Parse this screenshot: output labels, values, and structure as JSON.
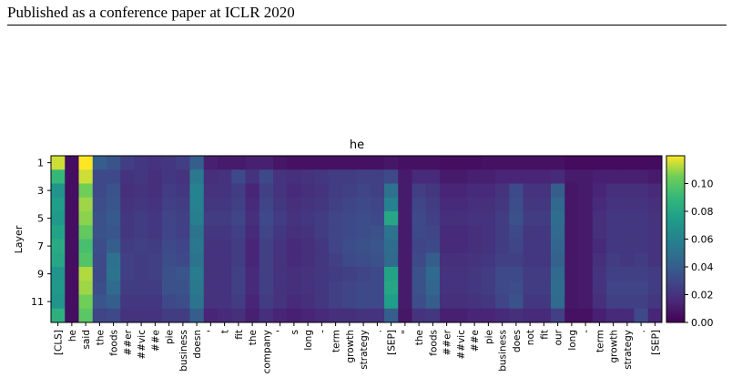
{
  "page": {
    "header": "Published as a conference paper at ICLR 2020"
  },
  "chart_data": {
    "type": "heatmap",
    "title": "he",
    "ylabel": "Layer",
    "xlabel": "",
    "y_tick_labels": [
      "1",
      "3",
      "5",
      "7",
      "9",
      "11"
    ],
    "rows": [
      1,
      2,
      3,
      4,
      5,
      6,
      7,
      8,
      9,
      10,
      11,
      12
    ],
    "x_tokens": [
      "[CLS]",
      "he",
      "said",
      "the",
      "foods",
      "##er",
      "##vic",
      "##e",
      "pie",
      "business",
      "doesn",
      "'",
      "t",
      "fit",
      "the",
      "company",
      "'",
      "s",
      "long",
      "-",
      "term",
      "growth",
      "strategy",
      ".",
      "[SEP]",
      "\"",
      "the",
      "foods",
      "##er",
      "##vic",
      "##e",
      "pie",
      "business",
      "does",
      "not",
      "fit",
      "our",
      "long",
      "-",
      "term",
      "growth",
      "strategy",
      ".",
      "[SEP]"
    ],
    "colorbar": {
      "min": 0.0,
      "max": 0.12,
      "ticks": [
        0.0,
        0.02,
        0.04,
        0.06,
        0.08,
        0.1
      ],
      "tick_labels": [
        "0.00",
        "0.02",
        "0.04",
        "0.06",
        "0.08",
        "0.10"
      ],
      "colormap": "viridis"
    },
    "values": [
      [
        0.115,
        0.005,
        0.12,
        0.04,
        0.035,
        0.025,
        0.022,
        0.02,
        0.022,
        0.025,
        0.04,
        0.012,
        0.01,
        0.01,
        0.012,
        0.012,
        0.008,
        0.006,
        0.006,
        0.006,
        0.006,
        0.006,
        0.006,
        0.006,
        0.008,
        0.006,
        0.006,
        0.006,
        0.005,
        0.005,
        0.005,
        0.006,
        0.006,
        0.006,
        0.006,
        0.006,
        0.006,
        0.004,
        0.004,
        0.004,
        0.004,
        0.004,
        0.004,
        0.004
      ],
      [
        0.09,
        0.005,
        0.115,
        0.03,
        0.03,
        0.02,
        0.022,
        0.018,
        0.022,
        0.02,
        0.055,
        0.018,
        0.02,
        0.03,
        0.02,
        0.03,
        0.02,
        0.018,
        0.02,
        0.022,
        0.024,
        0.024,
        0.026,
        0.026,
        0.03,
        0.01,
        0.016,
        0.016,
        0.01,
        0.01,
        0.012,
        0.012,
        0.014,
        0.014,
        0.014,
        0.014,
        0.016,
        0.01,
        0.01,
        0.012,
        0.012,
        0.012,
        0.012,
        0.01
      ],
      [
        0.07,
        0.005,
        0.105,
        0.03,
        0.035,
        0.018,
        0.02,
        0.018,
        0.024,
        0.022,
        0.06,
        0.02,
        0.02,
        0.024,
        0.014,
        0.026,
        0.02,
        0.016,
        0.018,
        0.02,
        0.024,
        0.026,
        0.028,
        0.026,
        0.05,
        0.01,
        0.025,
        0.022,
        0.014,
        0.014,
        0.016,
        0.016,
        0.02,
        0.03,
        0.02,
        0.02,
        0.04,
        0.008,
        0.01,
        0.014,
        0.018,
        0.018,
        0.018,
        0.016
      ],
      [
        0.075,
        0.005,
        0.11,
        0.032,
        0.036,
        0.02,
        0.022,
        0.02,
        0.026,
        0.024,
        0.06,
        0.022,
        0.022,
        0.026,
        0.016,
        0.028,
        0.022,
        0.018,
        0.02,
        0.022,
        0.026,
        0.028,
        0.03,
        0.028,
        0.06,
        0.01,
        0.028,
        0.024,
        0.016,
        0.016,
        0.018,
        0.018,
        0.022,
        0.032,
        0.022,
        0.022,
        0.045,
        0.008,
        0.01,
        0.016,
        0.02,
        0.02,
        0.02,
        0.018
      ],
      [
        0.072,
        0.005,
        0.108,
        0.034,
        0.038,
        0.022,
        0.024,
        0.022,
        0.028,
        0.026,
        0.058,
        0.024,
        0.024,
        0.028,
        0.018,
        0.03,
        0.024,
        0.02,
        0.022,
        0.024,
        0.028,
        0.03,
        0.032,
        0.03,
        0.08,
        0.01,
        0.03,
        0.026,
        0.018,
        0.018,
        0.02,
        0.02,
        0.024,
        0.034,
        0.024,
        0.024,
        0.048,
        0.008,
        0.01,
        0.018,
        0.022,
        0.022,
        0.022,
        0.02
      ],
      [
        0.078,
        0.005,
        0.102,
        0.034,
        0.036,
        0.022,
        0.024,
        0.022,
        0.028,
        0.026,
        0.052,
        0.022,
        0.022,
        0.026,
        0.016,
        0.028,
        0.022,
        0.018,
        0.02,
        0.024,
        0.028,
        0.03,
        0.032,
        0.034,
        0.052,
        0.01,
        0.03,
        0.028,
        0.016,
        0.016,
        0.018,
        0.02,
        0.024,
        0.03,
        0.022,
        0.022,
        0.046,
        0.008,
        0.01,
        0.018,
        0.022,
        0.022,
        0.022,
        0.02
      ],
      [
        0.082,
        0.005,
        0.095,
        0.032,
        0.04,
        0.024,
        0.026,
        0.024,
        0.03,
        0.028,
        0.054,
        0.02,
        0.02,
        0.024,
        0.014,
        0.026,
        0.02,
        0.016,
        0.018,
        0.022,
        0.028,
        0.032,
        0.034,
        0.036,
        0.048,
        0.01,
        0.028,
        0.03,
        0.016,
        0.016,
        0.018,
        0.02,
        0.024,
        0.028,
        0.022,
        0.022,
        0.044,
        0.008,
        0.01,
        0.016,
        0.022,
        0.022,
        0.022,
        0.02
      ],
      [
        0.08,
        0.005,
        0.098,
        0.03,
        0.05,
        0.026,
        0.024,
        0.026,
        0.032,
        0.03,
        0.052,
        0.02,
        0.02,
        0.024,
        0.014,
        0.026,
        0.02,
        0.016,
        0.018,
        0.022,
        0.026,
        0.03,
        0.032,
        0.034,
        0.046,
        0.01,
        0.03,
        0.04,
        0.018,
        0.018,
        0.02,
        0.022,
        0.026,
        0.026,
        0.022,
        0.022,
        0.042,
        0.008,
        0.01,
        0.018,
        0.024,
        0.022,
        0.024,
        0.02
      ],
      [
        0.07,
        0.005,
        0.112,
        0.03,
        0.052,
        0.026,
        0.024,
        0.026,
        0.034,
        0.036,
        0.056,
        0.02,
        0.02,
        0.026,
        0.016,
        0.026,
        0.02,
        0.018,
        0.02,
        0.022,
        0.024,
        0.026,
        0.028,
        0.03,
        0.078,
        0.01,
        0.034,
        0.046,
        0.02,
        0.02,
        0.022,
        0.024,
        0.03,
        0.03,
        0.024,
        0.024,
        0.046,
        0.008,
        0.01,
        0.02,
        0.026,
        0.026,
        0.026,
        0.024
      ],
      [
        0.072,
        0.005,
        0.11,
        0.032,
        0.046,
        0.024,
        0.024,
        0.024,
        0.034,
        0.034,
        0.054,
        0.02,
        0.02,
        0.026,
        0.016,
        0.026,
        0.02,
        0.018,
        0.02,
        0.022,
        0.026,
        0.028,
        0.03,
        0.03,
        0.08,
        0.01,
        0.034,
        0.044,
        0.02,
        0.02,
        0.022,
        0.024,
        0.03,
        0.032,
        0.024,
        0.024,
        0.048,
        0.008,
        0.01,
        0.02,
        0.028,
        0.028,
        0.028,
        0.024
      ],
      [
        0.07,
        0.005,
        0.105,
        0.036,
        0.04,
        0.022,
        0.022,
        0.022,
        0.03,
        0.032,
        0.052,
        0.02,
        0.02,
        0.024,
        0.014,
        0.024,
        0.02,
        0.016,
        0.018,
        0.022,
        0.026,
        0.028,
        0.03,
        0.03,
        0.075,
        0.01,
        0.032,
        0.04,
        0.018,
        0.018,
        0.02,
        0.022,
        0.028,
        0.034,
        0.022,
        0.022,
        0.046,
        0.008,
        0.01,
        0.018,
        0.026,
        0.026,
        0.026,
        0.022
      ],
      [
        0.085,
        0.005,
        0.1,
        0.028,
        0.03,
        0.02,
        0.02,
        0.02,
        0.024,
        0.024,
        0.04,
        0.014,
        0.016,
        0.018,
        0.012,
        0.018,
        0.014,
        0.012,
        0.014,
        0.016,
        0.018,
        0.018,
        0.02,
        0.02,
        0.04,
        0.008,
        0.02,
        0.022,
        0.012,
        0.012,
        0.014,
        0.014,
        0.016,
        0.018,
        0.016,
        0.016,
        0.026,
        0.006,
        0.006,
        0.012,
        0.016,
        0.016,
        0.03,
        0.014
      ]
    ]
  }
}
